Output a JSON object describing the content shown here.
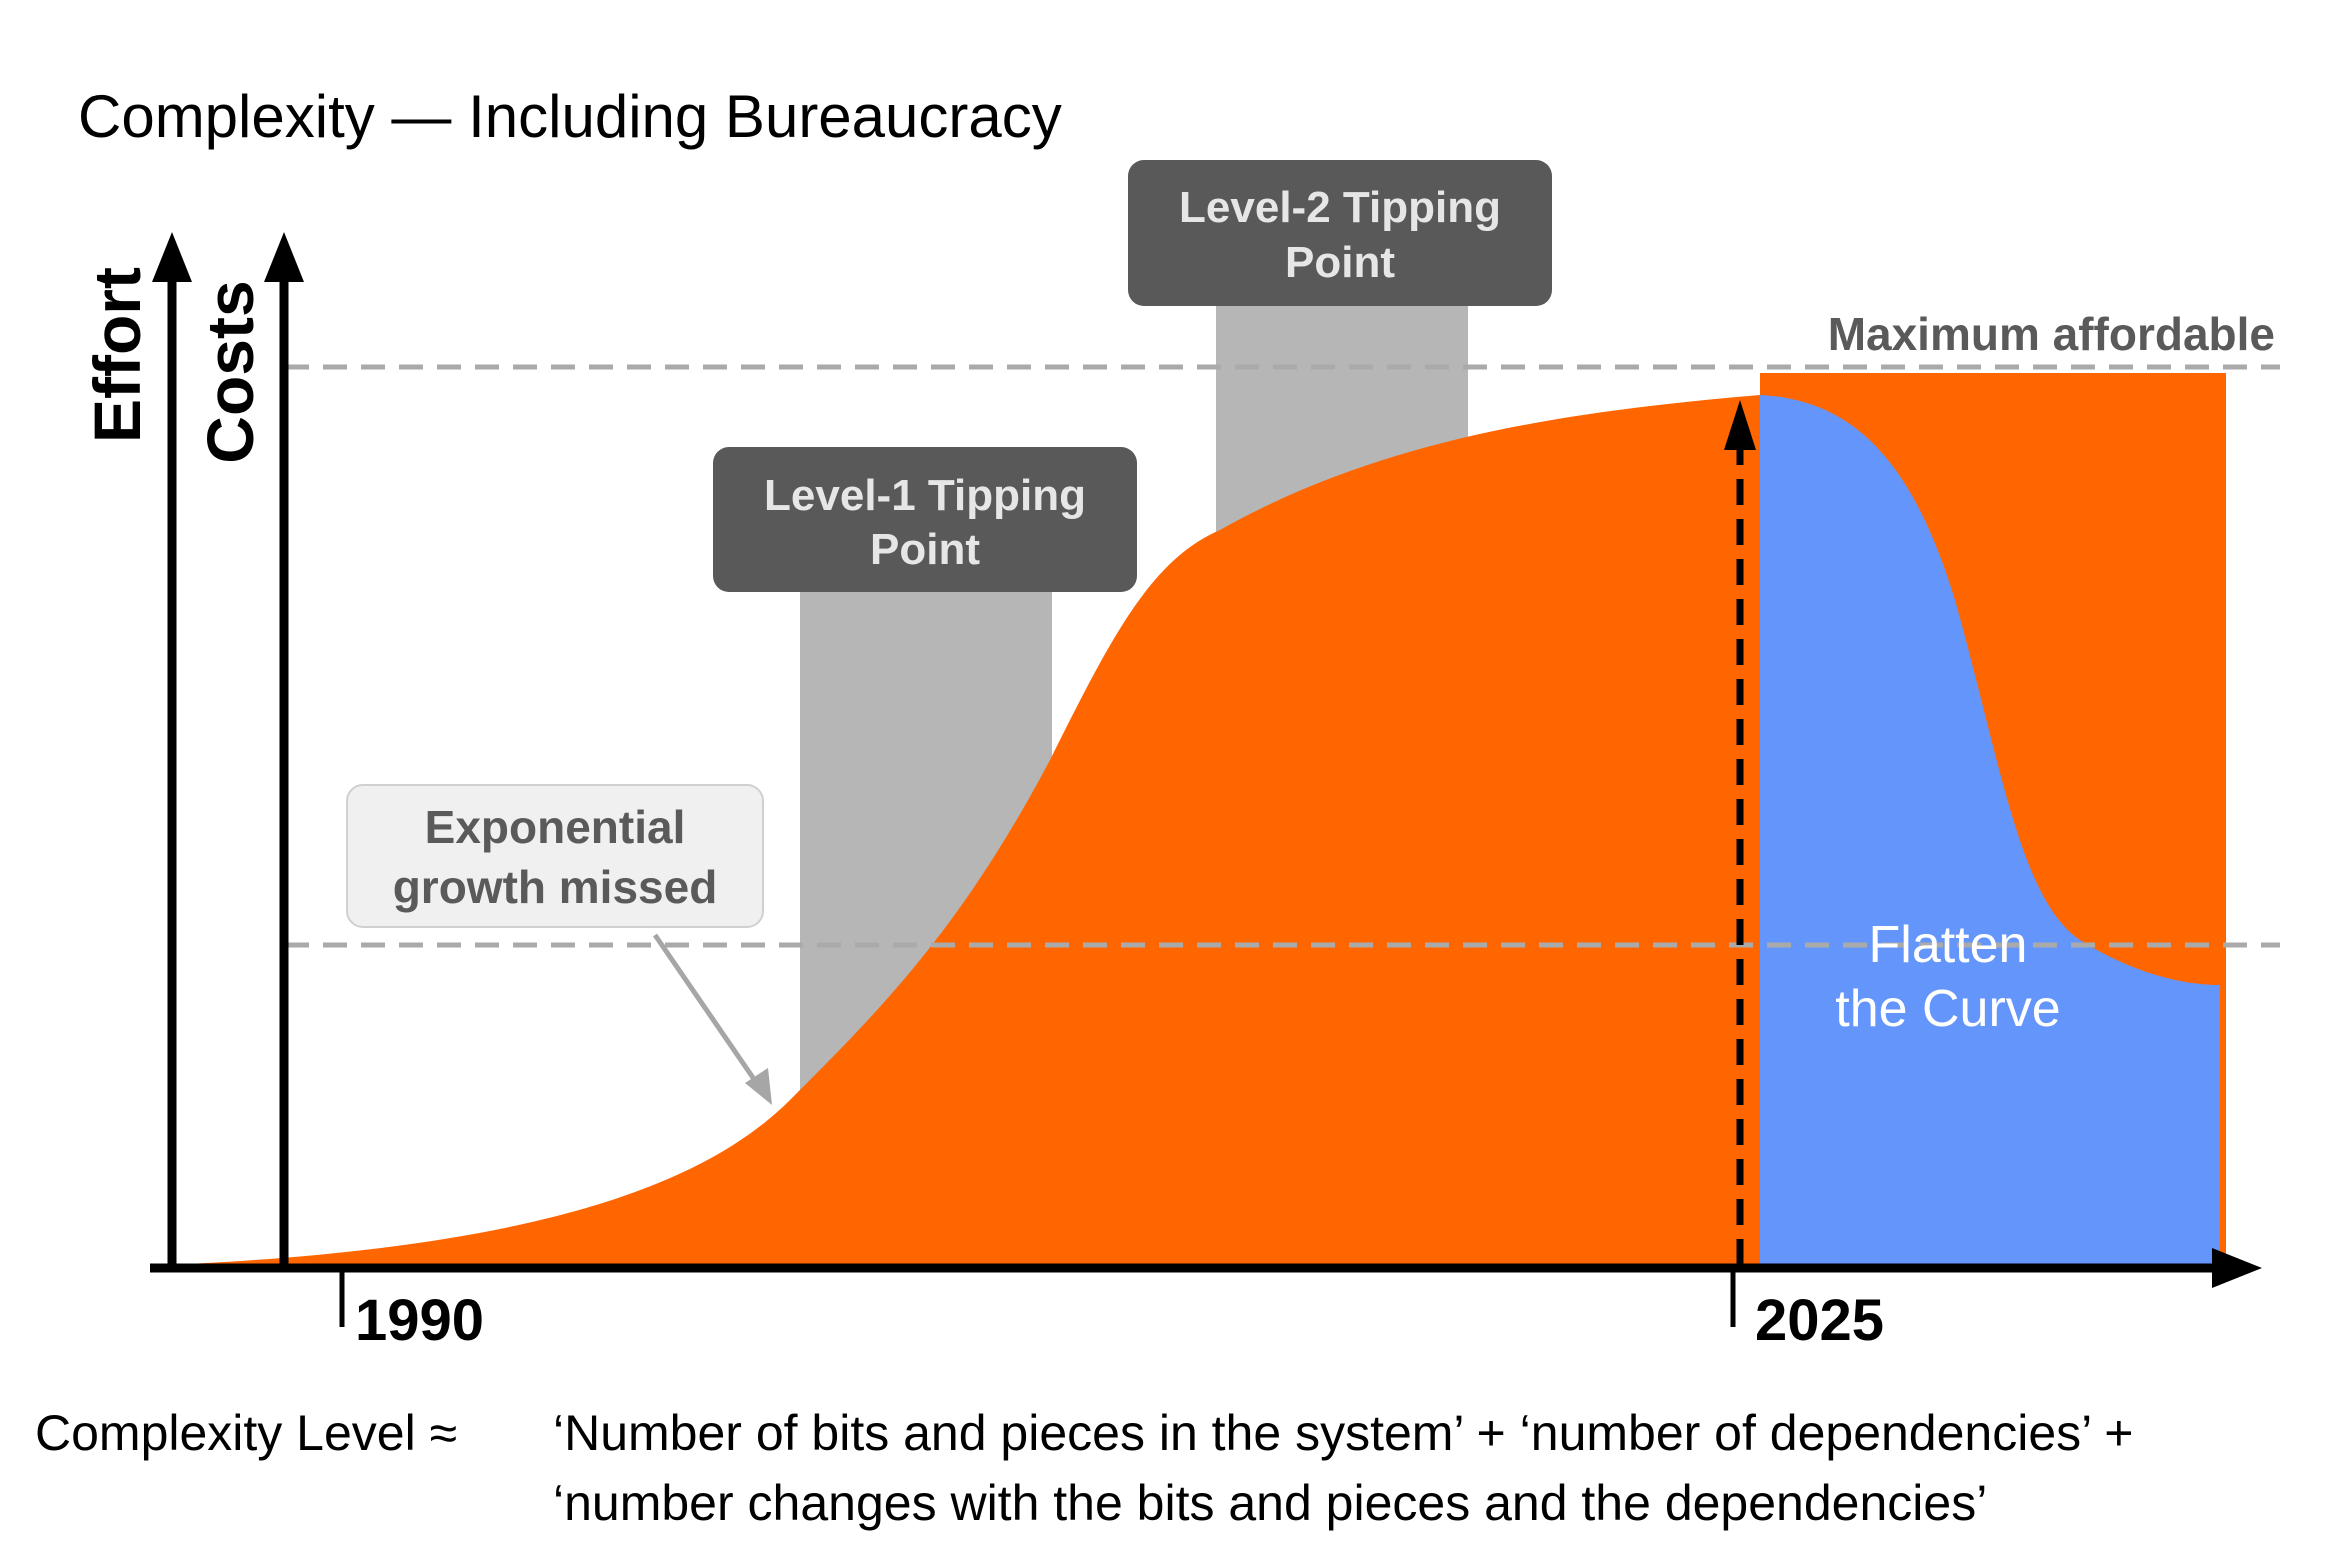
{
  "title": "Complexity — Including Bureaucracy",
  "axes": {
    "y_outer_label": "Effort",
    "y_inner_label": "Costs",
    "x_start_label": "1990",
    "x_marker_label": "2025"
  },
  "tipping_points": {
    "level1": {
      "line1": "Level-1 Tipping",
      "line2": "Point"
    },
    "level2": {
      "line1": "Level-2 Tipping",
      "line2": "Point"
    }
  },
  "callout": {
    "line1": "Exponential",
    "line2": "growth missed"
  },
  "maximum_label": "Maximum affordable",
  "flatten": {
    "line1": "Flatten",
    "line2": "the Curve"
  },
  "formula": {
    "prefix": "Complexity Level ≈",
    "line1": "‘Number of bits and pieces in the system’ + ‘number of dependencies’ +",
    "line2": "‘number changes with the bits and pieces and the dependencies’"
  },
  "colors": {
    "growth_fill": "#ff6600",
    "flatten_fill": "#6495fa",
    "tipping_box": "#595959",
    "tipping_column": "#b6b6b6",
    "dashed_line": "#aaaaaa",
    "callout_box": "#f0f0f0"
  }
}
